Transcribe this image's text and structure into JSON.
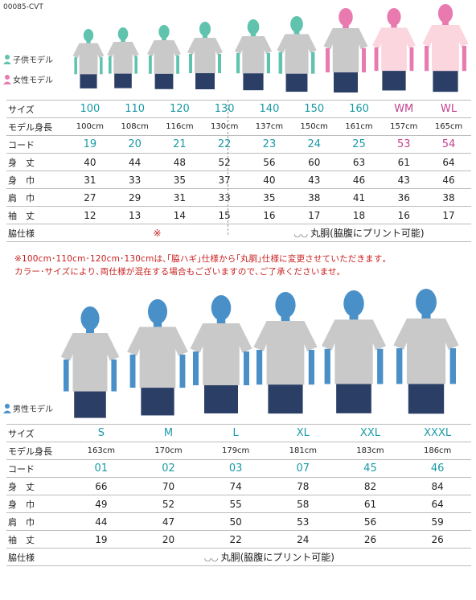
{
  "product_code": "00085-CVT",
  "top": {
    "legend": [
      {
        "label": "子供モデル",
        "color": "#5fc3ae",
        "icon": "child-model-icon"
      },
      {
        "label": "女性モデル",
        "color": "#e87ab0",
        "icon": "female-model-icon"
      }
    ],
    "row_labels": {
      "size": "サイズ",
      "height": "モデル身長",
      "code": "コード",
      "length": "身　丈",
      "width": "身　巾",
      "shoulder": "肩　巾",
      "sleeve": "袖　丈",
      "side": "脇仕様"
    },
    "columns": [
      {
        "size": "100",
        "height": "100cm",
        "code": "19",
        "length": "40",
        "width": "31",
        "shoulder": "27",
        "sleeve": "12",
        "group": "child"
      },
      {
        "size": "110",
        "height": "108cm",
        "code": "20",
        "length": "44",
        "width": "33",
        "shoulder": "29",
        "sleeve": "13",
        "group": "child"
      },
      {
        "size": "120",
        "height": "116cm",
        "code": "21",
        "length": "48",
        "width": "35",
        "shoulder": "31",
        "sleeve": "14",
        "group": "child"
      },
      {
        "size": "130",
        "height": "130cm",
        "code": "22",
        "length": "52",
        "width": "37",
        "shoulder": "33",
        "sleeve": "15",
        "group": "child"
      },
      {
        "size": "140",
        "height": "137cm",
        "code": "23",
        "length": "56",
        "width": "40",
        "shoulder": "35",
        "sleeve": "16",
        "group": "child"
      },
      {
        "size": "150",
        "height": "150cm",
        "code": "24",
        "length": "60",
        "width": "43",
        "shoulder": "38",
        "sleeve": "17",
        "group": "child"
      },
      {
        "size": "160",
        "height": "161cm",
        "code": "25",
        "length": "63",
        "width": "46",
        "shoulder": "41",
        "sleeve": "18",
        "group": "female"
      },
      {
        "size": "WM",
        "height": "157cm",
        "code": "53",
        "length": "61",
        "width": "43",
        "shoulder": "36",
        "sleeve": "16",
        "group": "female-wm"
      },
      {
        "size": "WL",
        "height": "165cm",
        "code": "54",
        "length": "64",
        "width": "46",
        "shoulder": "38",
        "sleeve": "17",
        "group": "female-wm"
      }
    ],
    "side_note_mark": "※",
    "side_spec": "丸胴(脇腹にプリント可能)",
    "notice_line1": "※100cm･110cm･120cm･130cmは､｢脇ハギ｣仕様から｢丸胴｣仕様に変更させていただきます｡",
    "notice_line2": "カラー･サイズにより､両仕様が混在する場合もございますので､ご了承くださいませ｡"
  },
  "bottom": {
    "legend": {
      "label": "男性モデル",
      "color": "#4a90c8",
      "icon": "male-model-icon"
    },
    "row_labels": {
      "size": "サイズ",
      "height": "モデル身長",
      "code": "コード",
      "length": "身　丈",
      "width": "身　巾",
      "shoulder": "肩　巾",
      "sleeve": "袖　丈",
      "side": "脇仕様"
    },
    "columns": [
      {
        "size": "S",
        "height": "163cm",
        "code": "01",
        "length": "66",
        "width": "49",
        "shoulder": "44",
        "sleeve": "19"
      },
      {
        "size": "M",
        "height": "170cm",
        "code": "02",
        "length": "70",
        "width": "52",
        "shoulder": "47",
        "sleeve": "20"
      },
      {
        "size": "L",
        "height": "179cm",
        "code": "03",
        "length": "74",
        "width": "55",
        "shoulder": "50",
        "sleeve": "22"
      },
      {
        "size": "XL",
        "height": "181cm",
        "code": "07",
        "length": "78",
        "width": "58",
        "shoulder": "53",
        "sleeve": "24"
      },
      {
        "size": "XXL",
        "height": "183cm",
        "code": "45",
        "length": "82",
        "width": "61",
        "shoulder": "56",
        "sleeve": "26"
      },
      {
        "size": "XXXL",
        "height": "186cm",
        "code": "46",
        "length": "84",
        "width": "64",
        "shoulder": "59",
        "sleeve": "26"
      }
    ],
    "side_spec": "丸胴(脇腹にプリント可能)"
  },
  "colors": {
    "teal": "#1a9aa6",
    "pink": "#c2438f",
    "child_model": "#5fc3ae",
    "female_model": "#e87ab0",
    "male_model": "#4a90c8",
    "shirt_gray": "#c9c9c9",
    "shirt_pink": "#fbd6df",
    "jeans": "#2b3f66",
    "notice_red": "#c81d1d"
  }
}
